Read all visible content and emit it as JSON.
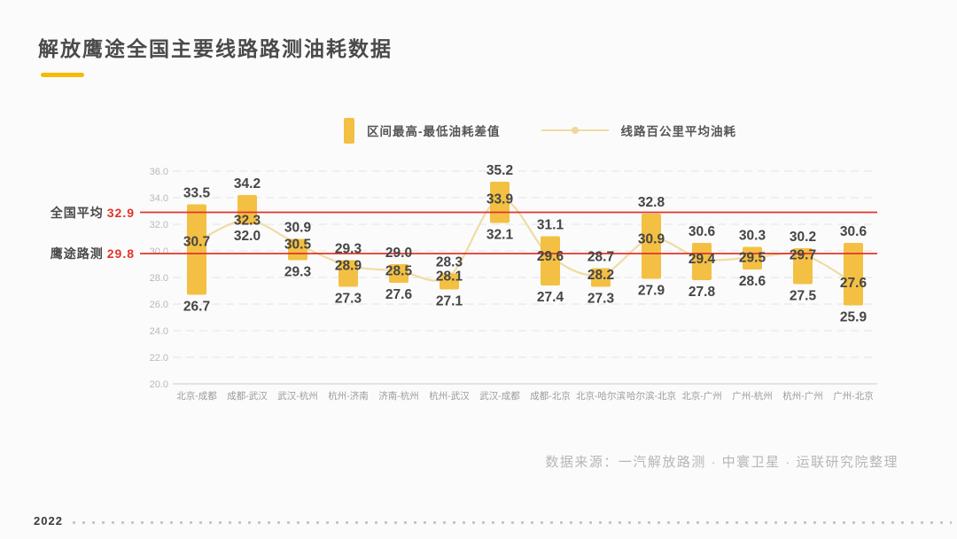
{
  "title": "解放鹰途全国主要线路路测油耗数据",
  "legend": {
    "bar_label": "区间最高-最低油耗差值",
    "line_label": "线路百公里平均油耗"
  },
  "footer": {
    "source": "数据来源：一汽解放路测 · 中寰卫星 · 运联研究院整理",
    "year": "2022"
  },
  "colors": {
    "bar": "#F3C043",
    "line": "#EFDCA4",
    "line_dot": "#EFD79B",
    "reference_line": "#E0352B",
    "reference_value_text": "#E0352B",
    "title_underline": "#F7BA00",
    "value_label": "#454545",
    "axis_tick_label": "#b9b9b9",
    "category_label": "#9b9b9b",
    "gridline": "#e3e3e3",
    "baseline": "#d6d6d6",
    "background": "#fbfbfb"
  },
  "chart_data": {
    "type": "bar+line",
    "title": "解放鹰途全国主要线路路测油耗数据",
    "categories": [
      "北京-成都",
      "成都-武汉",
      "武汉-杭州",
      "杭州-济南",
      "济南-杭州",
      "杭州-武汉",
      "武汉-成都",
      "成都-北京",
      "北京-哈尔滨",
      "哈尔滨-北京",
      "北京-广州",
      "广州-杭州",
      "杭州-广州",
      "广州-北京"
    ],
    "series": [
      {
        "name": "区间最高-最低油耗差值",
        "type": "range-bar",
        "high": [
          33.5,
          34.2,
          30.9,
          29.3,
          29.0,
          28.3,
          35.2,
          31.1,
          28.7,
          32.8,
          30.6,
          30.3,
          30.2,
          30.6
        ],
        "low": [
          26.7,
          32.0,
          29.3,
          27.3,
          27.6,
          27.1,
          32.1,
          27.4,
          27.3,
          27.9,
          27.8,
          28.6,
          27.5,
          25.9
        ]
      },
      {
        "name": "线路百公里平均油耗",
        "type": "line",
        "values": [
          30.7,
          32.3,
          30.5,
          28.9,
          28.5,
          28.1,
          33.9,
          29.6,
          28.2,
          30.9,
          29.4,
          29.5,
          29.7,
          27.6
        ]
      }
    ],
    "reference_lines": [
      {
        "label": "全国平均",
        "value": "32.9"
      },
      {
        "label": "鹰途路测",
        "value": "29.8"
      }
    ],
    "ylim": [
      20,
      36
    ],
    "yticks": [
      "36.0",
      "34.0",
      "32.0",
      "30.0",
      "28.0",
      "26.0",
      "24.0",
      "22.0",
      "20.0"
    ],
    "grid": "horizontal-dashed",
    "legend_position": "top-center"
  }
}
